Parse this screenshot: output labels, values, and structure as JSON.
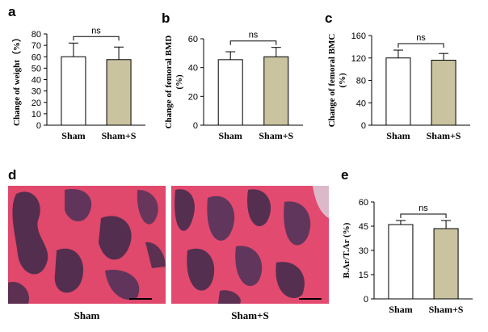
{
  "panels": {
    "d": {
      "letter": "d",
      "images": [
        {
          "label": "Sham"
        },
        {
          "label": "Sham+S"
        }
      ]
    }
  },
  "colors": {
    "sham_bar": "#ffffff",
    "treated_bar": "#c9c3a0",
    "tissue": "#e0486c",
    "marrow": "#3b2a4a"
  },
  "chart_data": [
    {
      "id": "a",
      "letter": "a",
      "type": "bar",
      "categories": [
        "Sham",
        "Sham+S"
      ],
      "values": [
        60,
        57.5
      ],
      "errors": [
        12,
        11
      ],
      "ylabel": "Change of weight（%）",
      "ylim": [
        0,
        80
      ],
      "yticks": [
        0,
        10,
        20,
        30,
        40,
        50,
        60,
        70,
        80
      ],
      "significance": "ns",
      "grid": false
    },
    {
      "id": "b",
      "letter": "b",
      "type": "bar",
      "categories": [
        "Sham",
        "Sham+S"
      ],
      "values": [
        45.5,
        47.5
      ],
      "errors": [
        5.5,
        6.5
      ],
      "ylabel": [
        "Change of femoral BMD",
        "(%)"
      ],
      "ylim": [
        0,
        60
      ],
      "yticks": [
        0,
        20,
        40,
        60
      ],
      "significance": "ns",
      "grid": false
    },
    {
      "id": "c",
      "letter": "c",
      "type": "bar",
      "categories": [
        "Sham",
        "Sham+S"
      ],
      "values": [
        120,
        116
      ],
      "errors": [
        14,
        12
      ],
      "ylabel": [
        "Change of femoral BMC",
        "(%)"
      ],
      "ylim": [
        0,
        160
      ],
      "yticks": [
        0,
        40,
        80,
        120,
        160
      ],
      "significance": "ns",
      "grid": false
    },
    {
      "id": "e",
      "letter": "e",
      "type": "bar",
      "categories": [
        "Sham",
        "Sham+S"
      ],
      "values": [
        46,
        43.5
      ],
      "errors": [
        2.5,
        5
      ],
      "ylabel": "B.Ar/T.Ar (%)",
      "ylim": [
        0,
        60
      ],
      "yticks": [
        0,
        15,
        30,
        45,
        60
      ],
      "significance": "ns",
      "grid": false
    }
  ]
}
